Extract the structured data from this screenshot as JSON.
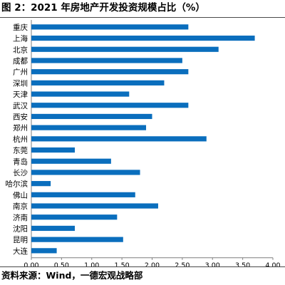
{
  "title": "图 2：2021 年房地产开发投资规模占比（%）",
  "source": "资料来源：Wind，一德宏观战略部",
  "colors": {
    "bar": "#0a6ebd",
    "axis": "#7f7f7f",
    "rule": "#4a4a4a"
  },
  "chart_data": {
    "type": "bar",
    "orientation": "horizontal",
    "title": "图 2：2021 年房地产开发投资规模占比（%）",
    "xlabel": "",
    "ylabel": "",
    "xlim": [
      0,
      4
    ],
    "xticks": [
      "0.00",
      "0.50",
      "1.00",
      "1.50",
      "2.00",
      "2.50",
      "3.00",
      "3.50",
      "4.00"
    ],
    "grid": false,
    "legend": "none",
    "categories": [
      "重庆",
      "上海",
      "北京",
      "成都",
      "广州",
      "深圳",
      "天津",
      "武汉",
      "西安",
      "郑州",
      "杭州",
      "东莞",
      "青岛",
      "长沙",
      "哈尔滨",
      "佛山",
      "南京",
      "济南",
      "沈阳",
      "昆明",
      "大连"
    ],
    "values": [
      2.6,
      3.7,
      3.1,
      2.5,
      2.6,
      2.2,
      1.62,
      2.6,
      2.0,
      1.9,
      2.9,
      0.72,
      1.32,
      1.8,
      0.32,
      1.72,
      2.1,
      1.42,
      0.72,
      1.52,
      0.42
    ]
  }
}
